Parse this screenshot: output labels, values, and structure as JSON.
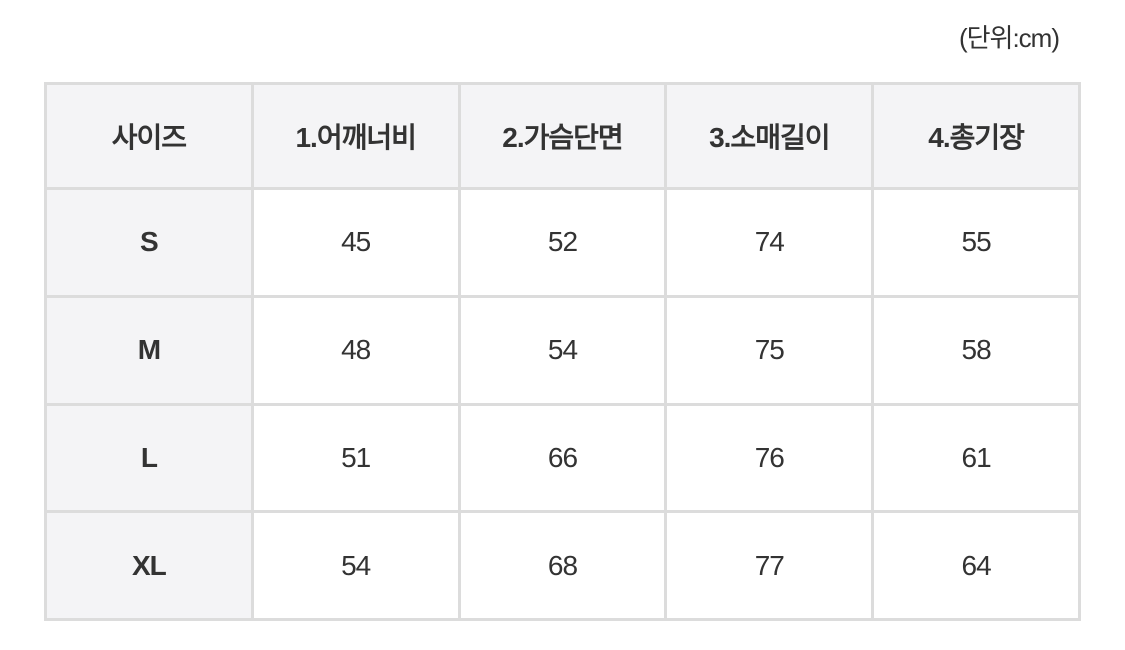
{
  "unit_label": "(단위:cm)",
  "table": {
    "header": [
      "사이즈",
      "1.어깨너비",
      "2.가슴단면",
      "3.소매길이",
      "4.총기장"
    ],
    "rows": [
      [
        "S",
        45,
        52,
        74,
        55
      ],
      [
        "M",
        48,
        54,
        75,
        58
      ],
      [
        "L",
        51,
        66,
        76,
        61
      ],
      [
        "XL",
        54,
        68,
        77,
        64
      ]
    ]
  }
}
